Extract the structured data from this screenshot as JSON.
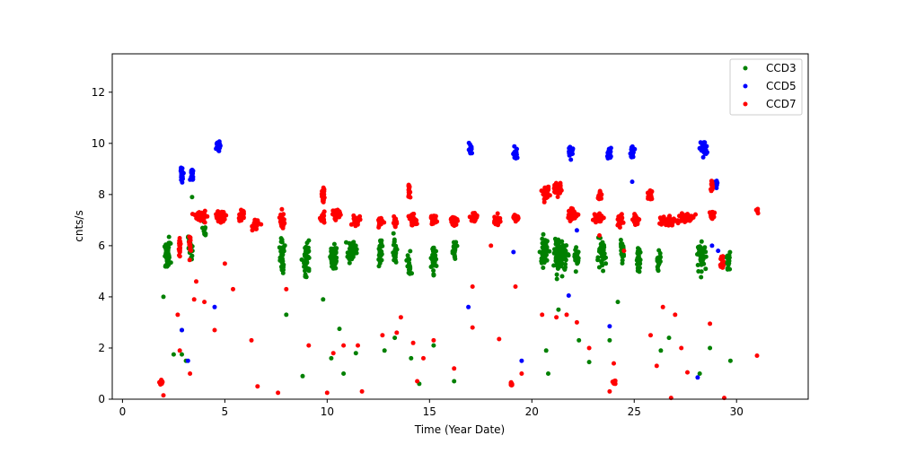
{
  "chart_data": {
    "type": "scatter",
    "title": "",
    "xlabel": "Time (Year Date)",
    "ylabel": "cnts/s",
    "xlim": [
      -0.5,
      33.5
    ],
    "ylim": [
      0,
      13.5
    ],
    "xticks": [
      0,
      5,
      10,
      15,
      20,
      25,
      30
    ],
    "yticks": [
      0,
      2,
      4,
      6,
      8,
      10,
      12
    ],
    "grid": false,
    "legend_position": "top-right",
    "series": [
      {
        "name": "CCD3",
        "color": "#008000",
        "clusters": [
          [
            2.2,
            5.6,
            0.15,
            0.5,
            60
          ],
          [
            3.3,
            6.0,
            0.1,
            0.5,
            20
          ],
          [
            4.0,
            6.5,
            0.1,
            0.4,
            10
          ],
          [
            7.8,
            5.6,
            0.1,
            0.7,
            40
          ],
          [
            9.0,
            5.5,
            0.15,
            0.7,
            45
          ],
          [
            10.3,
            5.6,
            0.15,
            0.5,
            60
          ],
          [
            11.2,
            5.8,
            0.2,
            0.4,
            50
          ],
          [
            12.6,
            5.7,
            0.1,
            0.5,
            30
          ],
          [
            13.3,
            5.8,
            0.1,
            0.5,
            25
          ],
          [
            14.0,
            5.2,
            0.1,
            0.5,
            25
          ],
          [
            15.2,
            5.5,
            0.1,
            0.5,
            40
          ],
          [
            16.2,
            5.8,
            0.1,
            0.4,
            25
          ],
          [
            20.6,
            5.7,
            0.2,
            0.5,
            60
          ],
          [
            21.4,
            5.6,
            0.3,
            0.6,
            90
          ],
          [
            22.2,
            5.5,
            0.1,
            0.4,
            30
          ],
          [
            23.4,
            5.6,
            0.2,
            0.5,
            40
          ],
          [
            24.4,
            5.7,
            0.1,
            0.4,
            25
          ],
          [
            25.2,
            5.5,
            0.1,
            0.4,
            25
          ],
          [
            26.2,
            5.4,
            0.1,
            0.4,
            25
          ],
          [
            28.3,
            5.6,
            0.2,
            0.5,
            40
          ],
          [
            29.6,
            5.4,
            0.1,
            0.4,
            20
          ]
        ],
        "points": [
          [
            2.0,
            4.0
          ],
          [
            2.5,
            1.75
          ],
          [
            2.9,
            1.75
          ],
          [
            2.9,
            2.7
          ],
          [
            3.1,
            1.5
          ],
          [
            3.4,
            7.9
          ],
          [
            8.0,
            3.3
          ],
          [
            8.8,
            0.9
          ],
          [
            9.8,
            3.9
          ],
          [
            10.2,
            1.6
          ],
          [
            10.6,
            2.75
          ],
          [
            10.8,
            1.0
          ],
          [
            11.4,
            1.8
          ],
          [
            12.8,
            1.9
          ],
          [
            13.3,
            2.4
          ],
          [
            14.1,
            1.6
          ],
          [
            14.5,
            0.6
          ],
          [
            15.2,
            2.1
          ],
          [
            16.2,
            0.7
          ],
          [
            20.7,
            1.9
          ],
          [
            20.8,
            1.0
          ],
          [
            21.3,
            3.5
          ],
          [
            22.3,
            2.3
          ],
          [
            22.8,
            1.45
          ],
          [
            23.8,
            2.3
          ],
          [
            24.2,
            3.8
          ],
          [
            26.3,
            1.9
          ],
          [
            26.7,
            2.4
          ],
          [
            28.2,
            1.0
          ],
          [
            28.7,
            2.0
          ],
          [
            29.7,
            1.5
          ]
        ]
      },
      {
        "name": "CCD5",
        "color": "#0000ff",
        "clusters": [
          [
            2.9,
            8.8,
            0.08,
            0.25,
            25
          ],
          [
            3.4,
            8.8,
            0.08,
            0.25,
            25
          ],
          [
            4.7,
            9.9,
            0.1,
            0.2,
            45
          ],
          [
            17.0,
            9.8,
            0.07,
            0.2,
            20
          ],
          [
            19.2,
            9.6,
            0.1,
            0.2,
            25
          ],
          [
            21.9,
            9.7,
            0.1,
            0.2,
            25
          ],
          [
            23.8,
            9.6,
            0.1,
            0.25,
            25
          ],
          [
            24.9,
            9.6,
            0.1,
            0.2,
            25
          ],
          [
            28.4,
            9.8,
            0.15,
            0.3,
            35
          ],
          [
            29.0,
            8.4,
            0.08,
            0.2,
            15
          ]
        ],
        "points": [
          [
            4.5,
            3.6
          ],
          [
            2.9,
            2.7
          ],
          [
            3.2,
            1.5
          ],
          [
            16.9,
            3.6
          ],
          [
            19.1,
            5.75
          ],
          [
            19.5,
            1.5
          ],
          [
            21.8,
            4.05
          ],
          [
            22.2,
            6.6
          ],
          [
            23.8,
            2.85
          ],
          [
            24.9,
            8.5
          ],
          [
            28.1,
            0.85
          ],
          [
            28.8,
            6.0
          ],
          [
            29.1,
            5.8
          ]
        ]
      },
      {
        "name": "CCD7",
        "color": "#ff0000",
        "clusters": [
          [
            1.9,
            0.65,
            0.08,
            0.1,
            20
          ],
          [
            2.8,
            5.9,
            0.05,
            0.3,
            15
          ],
          [
            3.3,
            6.0,
            0.05,
            0.4,
            15
          ],
          [
            3.8,
            7.15,
            0.25,
            0.2,
            45
          ],
          [
            4.8,
            7.15,
            0.25,
            0.2,
            45
          ],
          [
            5.8,
            7.15,
            0.15,
            0.2,
            25
          ],
          [
            6.5,
            6.8,
            0.15,
            0.2,
            30
          ],
          [
            7.8,
            7.0,
            0.1,
            0.3,
            30
          ],
          [
            9.8,
            8.0,
            0.1,
            0.3,
            25
          ],
          [
            9.8,
            7.0,
            0.1,
            0.2,
            20
          ],
          [
            10.5,
            7.2,
            0.2,
            0.2,
            45
          ],
          [
            11.4,
            7.0,
            0.2,
            0.2,
            35
          ],
          [
            12.6,
            6.9,
            0.1,
            0.2,
            25
          ],
          [
            13.3,
            6.9,
            0.1,
            0.2,
            20
          ],
          [
            14.0,
            8.2,
            0.05,
            0.3,
            15
          ],
          [
            14.2,
            7.0,
            0.2,
            0.2,
            35
          ],
          [
            15.2,
            7.0,
            0.15,
            0.2,
            30
          ],
          [
            16.2,
            7.0,
            0.15,
            0.2,
            30
          ],
          [
            17.2,
            7.1,
            0.15,
            0.2,
            30
          ],
          [
            18.3,
            7.0,
            0.15,
            0.2,
            30
          ],
          [
            19.2,
            7.1,
            0.15,
            0.15,
            25
          ],
          [
            19.0,
            0.6,
            0.05,
            0.08,
            10
          ],
          [
            20.7,
            8.0,
            0.15,
            0.25,
            30
          ],
          [
            21.3,
            8.2,
            0.2,
            0.2,
            45
          ],
          [
            22.0,
            7.2,
            0.3,
            0.2,
            45
          ],
          [
            23.3,
            8.0,
            0.1,
            0.2,
            20
          ],
          [
            23.3,
            7.1,
            0.2,
            0.2,
            30
          ],
          [
            24.0,
            0.65,
            0.08,
            0.08,
            12
          ],
          [
            24.3,
            7.0,
            0.15,
            0.2,
            30
          ],
          [
            25.1,
            7.0,
            0.15,
            0.2,
            30
          ],
          [
            25.8,
            8.0,
            0.1,
            0.25,
            20
          ],
          [
            26.6,
            7.0,
            0.4,
            0.2,
            60
          ],
          [
            27.5,
            7.1,
            0.3,
            0.2,
            45
          ],
          [
            28.8,
            7.2,
            0.15,
            0.2,
            25
          ],
          [
            28.8,
            8.3,
            0.08,
            0.2,
            15
          ],
          [
            29.3,
            5.4,
            0.1,
            0.3,
            20
          ],
          [
            31.0,
            7.3,
            0.05,
            0.2,
            5
          ]
        ],
        "points": [
          [
            2.0,
            0.15
          ],
          [
            2.7,
            3.3
          ],
          [
            2.8,
            1.9
          ],
          [
            3.3,
            1.0
          ],
          [
            3.5,
            3.9
          ],
          [
            3.6,
            4.6
          ],
          [
            4.0,
            3.8
          ],
          [
            4.5,
            2.7
          ],
          [
            5.0,
            5.3
          ],
          [
            5.4,
            4.3
          ],
          [
            6.3,
            2.3
          ],
          [
            6.6,
            0.5
          ],
          [
            7.6,
            0.25
          ],
          [
            8.0,
            4.3
          ],
          [
            9.1,
            2.1
          ],
          [
            10.0,
            0.25
          ],
          [
            10.3,
            1.8
          ],
          [
            10.8,
            2.1
          ],
          [
            11.5,
            2.1
          ],
          [
            11.7,
            0.3
          ],
          [
            12.7,
            2.5
          ],
          [
            13.4,
            2.6
          ],
          [
            13.6,
            3.2
          ],
          [
            14.2,
            2.2
          ],
          [
            14.4,
            0.7
          ],
          [
            14.7,
            1.6
          ],
          [
            15.2,
            2.3
          ],
          [
            16.2,
            1.2
          ],
          [
            17.1,
            4.4
          ],
          [
            17.1,
            2.8
          ],
          [
            18.0,
            6.0
          ],
          [
            18.4,
            2.35
          ],
          [
            19.2,
            4.4
          ],
          [
            19.5,
            1.0
          ],
          [
            20.5,
            3.3
          ],
          [
            21.2,
            3.2
          ],
          [
            21.7,
            3.3
          ],
          [
            22.2,
            3.0
          ],
          [
            22.8,
            2.0
          ],
          [
            23.3,
            6.4
          ],
          [
            23.8,
            0.3
          ],
          [
            24.0,
            1.4
          ],
          [
            24.5,
            5.8
          ],
          [
            25.8,
            2.5
          ],
          [
            26.1,
            1.3
          ],
          [
            26.4,
            3.6
          ],
          [
            26.8,
            0.05
          ],
          [
            27.0,
            3.3
          ],
          [
            27.3,
            2.0
          ],
          [
            27.6,
            1.05
          ],
          [
            28.7,
            2.95
          ],
          [
            29.4,
            0.05
          ],
          [
            31.0,
            1.7
          ]
        ]
      }
    ]
  }
}
